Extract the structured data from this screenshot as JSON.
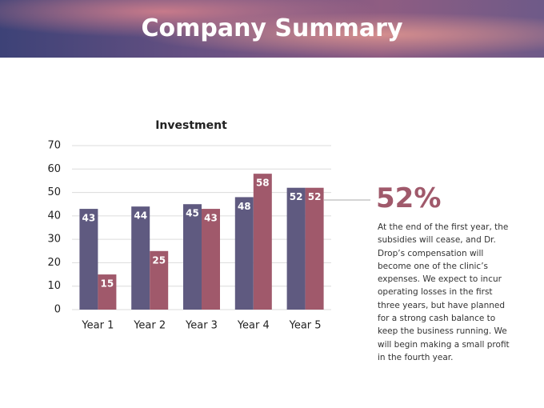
{
  "slide_title": "Company Summary",
  "chart_data": {
    "type": "bar",
    "title": "Investment",
    "categories": [
      "Year 1",
      "Year 2",
      "Year 3",
      "Year 4",
      "Year 5"
    ],
    "series": [
      {
        "color": "#5f5a80",
        "values": [
          43,
          44,
          45,
          48,
          52
        ]
      },
      {
        "color": "#a0596b",
        "values": [
          15,
          25,
          43,
          58,
          52
        ]
      }
    ],
    "ylim": [
      0,
      70
    ],
    "yticks": [
      0,
      10,
      20,
      30,
      40,
      50,
      60,
      70
    ],
    "grid": true
  },
  "callout": {
    "headline": "52%",
    "text": "At the end of the first year, the subsidies will cease, and Dr. Drop’s compensation will become one of the clinic’s expenses. We expect to incur operating losses in the first three years, but have planned for a strong cash balance to keep the business running. We will begin making a small profit in the fourth year."
  }
}
